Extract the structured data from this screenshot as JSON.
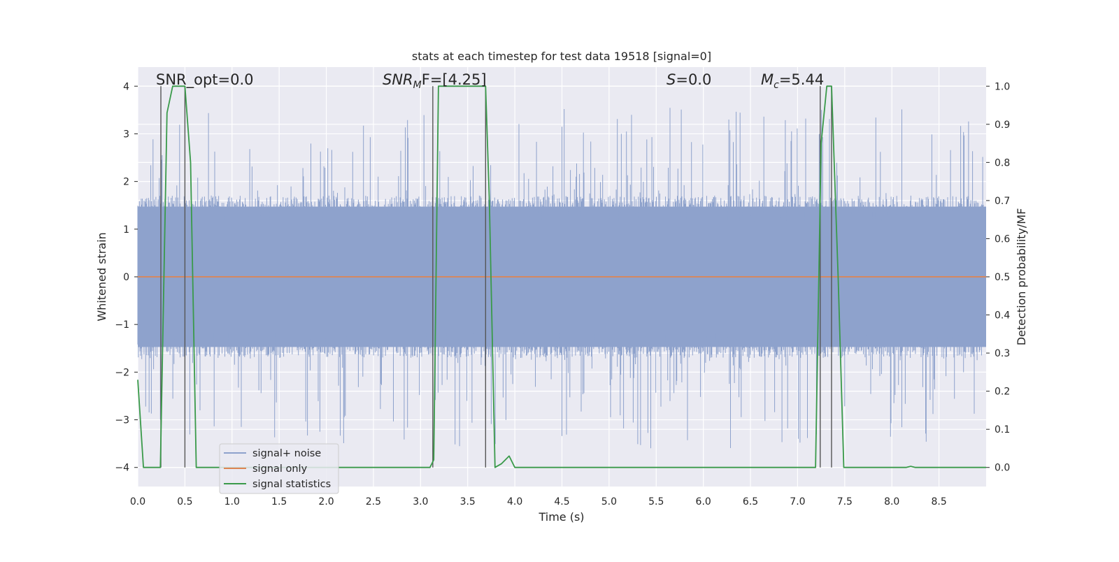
{
  "chart_data": {
    "type": "line",
    "title": "stats at each timestep for test data 19518 [signal=0]",
    "xlabel": "Time (s)",
    "ylabel_left": "Whitened strain",
    "ylabel_right": "Detection probability/MF",
    "xlim": [
      0,
      9.0
    ],
    "ylim_left": [
      -4.4,
      4.4
    ],
    "ylim_right": [
      -0.05,
      1.05
    ],
    "xticks": [
      0.0,
      0.5,
      1.0,
      1.5,
      2.0,
      2.5,
      3.0,
      3.5,
      4.0,
      4.5,
      5.0,
      5.5,
      6.0,
      6.5,
      7.0,
      7.5,
      8.0,
      8.5
    ],
    "xtick_labels": [
      "0.0",
      "0.5",
      "1.0",
      "1.5",
      "2.0",
      "2.5",
      "3.0",
      "3.5",
      "4.0",
      "4.5",
      "5.0",
      "5.5",
      "6.0",
      "6.5",
      "7.0",
      "7.5",
      "8.0",
      "8.5"
    ],
    "yticks_left": [
      4,
      3,
      2,
      1,
      0,
      -1,
      -2,
      -3,
      -4
    ],
    "ytick_labels_left": [
      "4",
      "3",
      "2",
      "1",
      "0",
      "−1",
      "−2",
      "−3",
      "−4"
    ],
    "yticks_right": [
      1.0,
      0.9,
      0.8,
      0.7,
      0.6,
      0.5,
      0.4,
      0.3,
      0.2,
      0.1,
      0.0
    ],
    "ytick_labels_right": [
      "1.0",
      "0.9",
      "0.8",
      "0.7",
      "0.6",
      "0.5",
      "0.4",
      "0.3",
      "0.2",
      "0.1",
      "0.0"
    ],
    "annotations": {
      "snr_opt": "SNR_opt=0.0",
      "snr_mf_main": "SNR",
      "snr_mf_sub": "M",
      "snr_mf_rest": "F=[4.25]",
      "s_main": "S",
      "s_rest": "=0.0",
      "mc_main": "M",
      "mc_sub": "c",
      "mc_rest": "=5.44"
    },
    "legend": {
      "location": "lower-left",
      "entries": [
        {
          "label": "signal+ noise",
          "color": "#8ea2cc"
        },
        {
          "label": "signal only",
          "color": "#dd8452"
        },
        {
          "label": "signal statistics",
          "color": "#3a9a4a"
        }
      ]
    },
    "vertical_markers_s": [
      0.245,
      0.5,
      3.13,
      3.69,
      7.24,
      7.36
    ],
    "series": [
      {
        "name": "signal+ noise",
        "color": "#8ea2cc",
        "axis": "left",
        "description": "whitened strain noise, approx |y| < 1.6 typical, peaks to ±3.5",
        "amplitude_core": 1.55,
        "amplitude_peak": 3.6
      },
      {
        "name": "signal only",
        "color": "#dd8452",
        "axis": "left",
        "x": [
          0,
          9.0
        ],
        "y": [
          0,
          0
        ]
      },
      {
        "name": "signal statistics",
        "color": "#3a9a4a",
        "axis": "right",
        "x": [
          0.0,
          0.06,
          0.24,
          0.31,
          0.37,
          0.5,
          0.56,
          0.62,
          0.66,
          3.1,
          3.14,
          3.19,
          3.65,
          3.69,
          3.73,
          3.79,
          3.86,
          3.94,
          4.0,
          4.05,
          7.19,
          7.25,
          7.31,
          7.36,
          7.43,
          7.49,
          7.55,
          8.15,
          8.2,
          8.25,
          9.0
        ],
        "y": [
          0.23,
          0.0,
          0.0,
          0.93,
          1.0,
          1.0,
          0.8,
          0.0,
          0.0,
          0.0,
          0.02,
          1.0,
          1.0,
          1.0,
          0.7,
          0.0,
          0.01,
          0.03,
          0.0,
          0.0,
          0.0,
          0.85,
          1.0,
          1.0,
          0.5,
          0.0,
          0.0,
          0.0,
          0.003,
          0.0,
          0.0
        ]
      }
    ]
  }
}
